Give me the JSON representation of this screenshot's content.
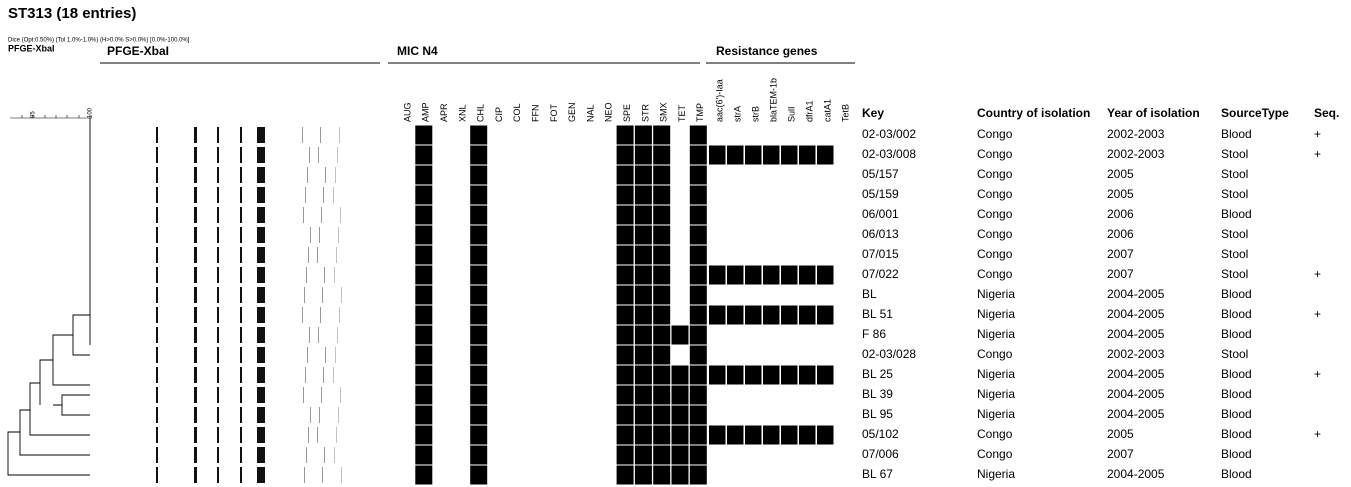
{
  "header": {
    "title": "ST313 (18 entries)",
    "method": "Dice (Opt:0.50%) (Tol 1.0%-1.0%) (H>0.0% S>0.0%) [0.0%-100.0%]",
    "tree_label": "PFGE-XbaI",
    "scale_ticks": [
      "95",
      "100"
    ]
  },
  "sections": {
    "gel": "PFGE-XbaI",
    "mic": "MIC N4",
    "genes": "Resistance genes"
  },
  "mic_columns": [
    "AUG",
    "AMP",
    "APR",
    "XNL",
    "CHL",
    "CIP",
    "COL",
    "FFN",
    "FOT",
    "GEN",
    "NAL",
    "NEO",
    "SPE",
    "STR",
    "SMX",
    "TET",
    "TMP"
  ],
  "gene_columns": [
    "aac(6')-Iaa",
    "strA",
    "strB",
    "blaTEM-1b",
    "SulI",
    "dfrA1",
    "catA1",
    "TetB"
  ],
  "table": {
    "headers": [
      "Key",
      "Country of isolation",
      "Year of isolation",
      "SourceType",
      "Seq."
    ],
    "rows": [
      {
        "cells": [
          "02-03/002",
          "Congo",
          "2002-2003",
          "Blood",
          "+"
        ],
        "mic": [
          0,
          1,
          0,
          0,
          1,
          0,
          0,
          0,
          0,
          0,
          0,
          0,
          1,
          1,
          1,
          0,
          1
        ],
        "genes": [
          0,
          0,
          0,
          0,
          0,
          0,
          0,
          0
        ]
      },
      {
        "cells": [
          "02-03/008",
          "Congo",
          "2002-2003",
          "Stool",
          "+"
        ],
        "mic": [
          0,
          1,
          0,
          0,
          1,
          0,
          0,
          0,
          0,
          0,
          0,
          0,
          1,
          1,
          1,
          0,
          1
        ],
        "genes": [
          1,
          1,
          1,
          1,
          1,
          1,
          1,
          0
        ]
      },
      {
        "cells": [
          "05/157",
          "Congo",
          "2005",
          "Stool",
          ""
        ],
        "mic": [
          0,
          1,
          0,
          0,
          1,
          0,
          0,
          0,
          0,
          0,
          0,
          0,
          1,
          1,
          1,
          0,
          1
        ],
        "genes": [
          0,
          0,
          0,
          0,
          0,
          0,
          0,
          0
        ]
      },
      {
        "cells": [
          "05/159",
          "Congo",
          "2005",
          "Stool",
          ""
        ],
        "mic": [
          0,
          1,
          0,
          0,
          1,
          0,
          0,
          0,
          0,
          0,
          0,
          0,
          1,
          1,
          1,
          0,
          1
        ],
        "genes": [
          0,
          0,
          0,
          0,
          0,
          0,
          0,
          0
        ]
      },
      {
        "cells": [
          "06/001",
          "Congo",
          "2006",
          "Blood",
          ""
        ],
        "mic": [
          0,
          1,
          0,
          0,
          1,
          0,
          0,
          0,
          0,
          0,
          0,
          0,
          1,
          1,
          1,
          0,
          1
        ],
        "genes": [
          0,
          0,
          0,
          0,
          0,
          0,
          0,
          0
        ]
      },
      {
        "cells": [
          "06/013",
          "Congo",
          "2006",
          "Stool",
          ""
        ],
        "mic": [
          0,
          1,
          0,
          0,
          1,
          0,
          0,
          0,
          0,
          0,
          0,
          0,
          1,
          1,
          1,
          0,
          1
        ],
        "genes": [
          0,
          0,
          0,
          0,
          0,
          0,
          0,
          0
        ]
      },
      {
        "cells": [
          "07/015",
          "Congo",
          "2007",
          "Stool",
          ""
        ],
        "mic": [
          0,
          1,
          0,
          0,
          1,
          0,
          0,
          0,
          0,
          0,
          0,
          0,
          1,
          1,
          1,
          0,
          1
        ],
        "genes": [
          0,
          0,
          0,
          0,
          0,
          0,
          0,
          0
        ]
      },
      {
        "cells": [
          "07/022",
          "Congo",
          "2007",
          "Stool",
          "+"
        ],
        "mic": [
          0,
          1,
          0,
          0,
          1,
          0,
          0,
          0,
          0,
          0,
          0,
          0,
          1,
          1,
          1,
          0,
          1
        ],
        "genes": [
          1,
          1,
          1,
          1,
          1,
          1,
          1,
          0
        ]
      },
      {
        "cells": [
          "BL",
          "Nigeria",
          "2004-2005",
          "Blood",
          ""
        ],
        "mic": [
          0,
          1,
          0,
          0,
          1,
          0,
          0,
          0,
          0,
          0,
          0,
          0,
          1,
          1,
          1,
          0,
          1
        ],
        "genes": [
          0,
          0,
          0,
          0,
          0,
          0,
          0,
          0
        ]
      },
      {
        "cells": [
          "BL 51",
          "Nigeria",
          "2004-2005",
          "Blood",
          "+"
        ],
        "mic": [
          0,
          1,
          0,
          0,
          1,
          0,
          0,
          0,
          0,
          0,
          0,
          0,
          1,
          1,
          1,
          0,
          1
        ],
        "genes": [
          1,
          1,
          1,
          1,
          1,
          1,
          1,
          0
        ]
      },
      {
        "cells": [
          "F 86",
          "Nigeria",
          "2004-2005",
          "Blood",
          ""
        ],
        "mic": [
          0,
          1,
          0,
          0,
          1,
          0,
          0,
          0,
          0,
          0,
          0,
          0,
          1,
          1,
          1,
          1,
          1
        ],
        "genes": [
          0,
          0,
          0,
          0,
          0,
          0,
          0,
          0
        ]
      },
      {
        "cells": [
          "02-03/028",
          "Congo",
          "2002-2003",
          "Stool",
          ""
        ],
        "mic": [
          0,
          1,
          0,
          0,
          1,
          0,
          0,
          0,
          0,
          0,
          0,
          0,
          1,
          1,
          1,
          0,
          1
        ],
        "genes": [
          0,
          0,
          0,
          0,
          0,
          0,
          0,
          0
        ]
      },
      {
        "cells": [
          "BL 25",
          "Nigeria",
          "2004-2005",
          "Blood",
          "+"
        ],
        "mic": [
          0,
          1,
          0,
          0,
          1,
          0,
          0,
          0,
          0,
          0,
          0,
          0,
          1,
          1,
          1,
          1,
          1
        ],
        "genes": [
          1,
          1,
          1,
          1,
          1,
          1,
          1,
          0
        ]
      },
      {
        "cells": [
          "BL 39",
          "Nigeria",
          "2004-2005",
          "Blood",
          ""
        ],
        "mic": [
          0,
          1,
          0,
          0,
          1,
          0,
          0,
          0,
          0,
          0,
          0,
          0,
          1,
          1,
          1,
          1,
          1
        ],
        "genes": [
          0,
          0,
          0,
          0,
          0,
          0,
          0,
          0
        ]
      },
      {
        "cells": [
          "BL 95",
          "Nigeria",
          "2004-2005",
          "Blood",
          ""
        ],
        "mic": [
          0,
          1,
          0,
          0,
          1,
          0,
          0,
          0,
          0,
          0,
          0,
          0,
          1,
          1,
          1,
          1,
          1
        ],
        "genes": [
          0,
          0,
          0,
          0,
          0,
          0,
          0,
          0
        ]
      },
      {
        "cells": [
          "05/102",
          "Congo",
          "2005",
          "Blood",
          "+"
        ],
        "mic": [
          0,
          1,
          0,
          0,
          1,
          0,
          0,
          0,
          0,
          0,
          0,
          0,
          1,
          1,
          1,
          1,
          1
        ],
        "genes": [
          1,
          1,
          1,
          1,
          1,
          1,
          1,
          0
        ]
      },
      {
        "cells": [
          "07/006",
          "Congo",
          "2007",
          "Blood",
          ""
        ],
        "mic": [
          0,
          1,
          0,
          0,
          1,
          0,
          0,
          0,
          0,
          0,
          0,
          0,
          1,
          1,
          1,
          1,
          1
        ],
        "genes": [
          0,
          0,
          0,
          0,
          0,
          0,
          0,
          0
        ]
      },
      {
        "cells": [
          "BL 67",
          "Nigeria",
          "2004-2005",
          "Blood",
          ""
        ],
        "mic": [
          0,
          1,
          0,
          0,
          1,
          0,
          0,
          0,
          0,
          0,
          0,
          0,
          1,
          1,
          1,
          1,
          1
        ],
        "genes": [
          0,
          0,
          0,
          0,
          0,
          0,
          0,
          0
        ]
      }
    ]
  }
}
